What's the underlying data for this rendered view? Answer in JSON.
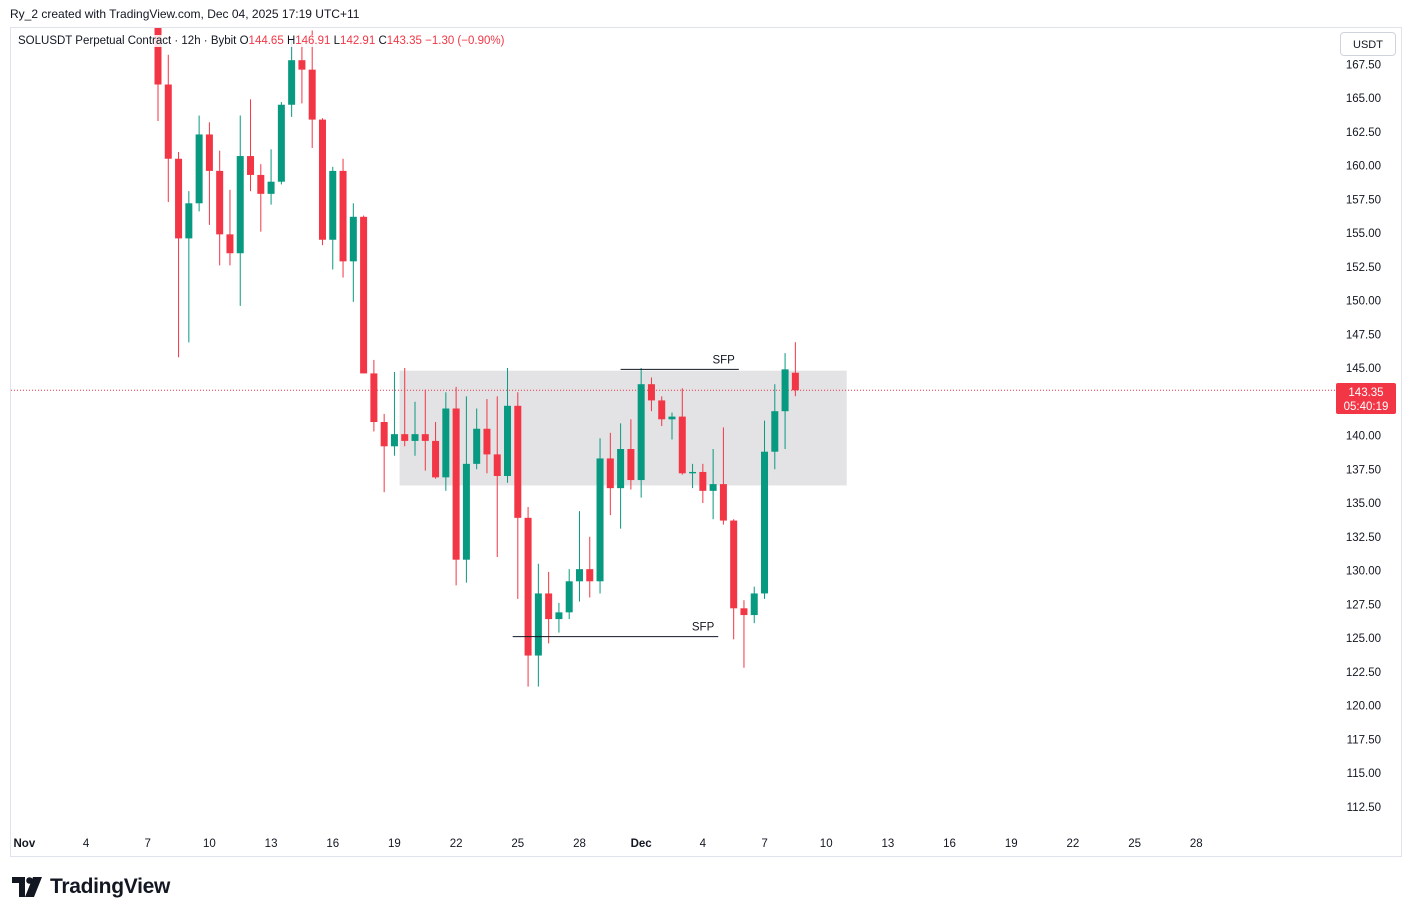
{
  "header": {
    "attribution": "Ry_2 created with TradingView.com, Dec 04, 2025 17:19 UTC+11"
  },
  "legend": {
    "symbol": "SOLUSDT Perpetual Contract · 12h · Bybit",
    "open_label": "O",
    "open": "144.65",
    "high_label": "H",
    "high": "146.91",
    "low_label": "L",
    "low": "142.91",
    "close_label": "C",
    "close": "143.35",
    "change": "−1.30 (−0.90%)"
  },
  "currency": "USDT",
  "last_price": {
    "price": "143.35",
    "countdown": "05:40:19"
  },
  "branding": {
    "name": "TradingView"
  },
  "colors": {
    "up": "#089981",
    "down": "#f23645",
    "zone": "#e1e2e4",
    "line": "#131722",
    "grid": "#e0e3eb"
  },
  "chart_data": {
    "type": "candlestick",
    "interval": "12h",
    "price_axis": {
      "ticks": [
        "167.50",
        "165.00",
        "162.50",
        "160.00",
        "157.50",
        "155.00",
        "152.50",
        "150.00",
        "147.50",
        "145.00",
        "140.00",
        "137.50",
        "135.00",
        "132.50",
        "130.00",
        "127.50",
        "125.00",
        "122.50",
        "120.00",
        "117.50",
        "115.00",
        "112.50"
      ],
      "range": [
        110.8,
        168.9
      ]
    },
    "time_axis": {
      "ticks": [
        {
          "label": "28",
          "i": -19,
          "bold": false
        },
        {
          "label": "Nov",
          "i": -13,
          "bold": true
        },
        {
          "label": "4",
          "i": -7,
          "bold": false
        },
        {
          "label": "7",
          "i": -1,
          "bold": false
        },
        {
          "label": "10",
          "i": 5,
          "bold": false
        },
        {
          "label": "13",
          "i": 11,
          "bold": false
        },
        {
          "label": "16",
          "i": 17,
          "bold": false
        },
        {
          "label": "19",
          "i": 23,
          "bold": false
        },
        {
          "label": "22",
          "i": 29,
          "bold": false
        },
        {
          "label": "25",
          "i": 35,
          "bold": false
        },
        {
          "label": "28",
          "i": 41,
          "bold": false
        },
        {
          "label": "Dec",
          "i": 47,
          "bold": true
        },
        {
          "label": "4",
          "i": 53,
          "bold": false
        },
        {
          "label": "7",
          "i": 59,
          "bold": false
        },
        {
          "label": "10",
          "i": 65,
          "bold": false
        },
        {
          "label": "13",
          "i": 71,
          "bold": false
        },
        {
          "label": "16",
          "i": 77,
          "bold": false
        },
        {
          "label": "19",
          "i": 83,
          "bold": false
        },
        {
          "label": "22",
          "i": 89,
          "bold": false
        },
        {
          "label": "25",
          "i": 95,
          "bold": false
        },
        {
          "label": "28",
          "i": 101,
          "bold": false
        }
      ]
    },
    "candles": [
      {
        "o": 170.5,
        "h": 171.5,
        "l": 163.3,
        "c": 166.0
      },
      {
        "o": 166.0,
        "h": 168.2,
        "l": 157.3,
        "c": 160.5
      },
      {
        "o": 160.5,
        "h": 161.0,
        "l": 145.8,
        "c": 154.6
      },
      {
        "o": 154.6,
        "h": 158.1,
        "l": 146.9,
        "c": 157.2
      },
      {
        "o": 157.2,
        "h": 163.7,
        "l": 156.6,
        "c": 162.3
      },
      {
        "o": 162.3,
        "h": 163.2,
        "l": 155.6,
        "c": 159.6
      },
      {
        "o": 159.6,
        "h": 161.1,
        "l": 152.6,
        "c": 154.9
      },
      {
        "o": 154.9,
        "h": 158.2,
        "l": 152.6,
        "c": 153.5
      },
      {
        "o": 153.5,
        "h": 163.7,
        "l": 149.6,
        "c": 160.7
      },
      {
        "o": 160.7,
        "h": 164.9,
        "l": 158.1,
        "c": 159.3
      },
      {
        "o": 159.3,
        "h": 160.1,
        "l": 155.1,
        "c": 157.9
      },
      {
        "o": 157.9,
        "h": 161.2,
        "l": 157.1,
        "c": 158.8
      },
      {
        "o": 158.8,
        "h": 164.7,
        "l": 158.6,
        "c": 164.5
      },
      {
        "o": 164.5,
        "h": 169.4,
        "l": 163.6,
        "c": 167.8
      },
      {
        "o": 167.8,
        "h": 169.4,
        "l": 164.6,
        "c": 167.1
      },
      {
        "o": 167.1,
        "h": 170.0,
        "l": 161.3,
        "c": 163.4
      },
      {
        "o": 163.4,
        "h": 163.5,
        "l": 154.1,
        "c": 154.5
      },
      {
        "o": 154.5,
        "h": 159.9,
        "l": 152.3,
        "c": 159.6
      },
      {
        "o": 159.6,
        "h": 160.5,
        "l": 151.7,
        "c": 152.9
      },
      {
        "o": 152.9,
        "h": 157.2,
        "l": 149.9,
        "c": 156.2
      },
      {
        "o": 156.2,
        "h": 156.3,
        "l": 144.6,
        "c": 144.6
      },
      {
        "o": 144.6,
        "h": 145.6,
        "l": 140.3,
        "c": 141.0
      },
      {
        "o": 141.0,
        "h": 141.6,
        "l": 135.8,
        "c": 139.2
      },
      {
        "o": 139.2,
        "h": 144.7,
        "l": 138.5,
        "c": 140.1
      },
      {
        "o": 140.1,
        "h": 145.0,
        "l": 139.2,
        "c": 139.6
      },
      {
        "o": 139.6,
        "h": 142.5,
        "l": 138.5,
        "c": 140.1
      },
      {
        "o": 140.1,
        "h": 143.4,
        "l": 137.4,
        "c": 139.6
      },
      {
        "o": 139.6,
        "h": 141.0,
        "l": 136.8,
        "c": 136.9
      },
      {
        "o": 136.9,
        "h": 143.2,
        "l": 135.9,
        "c": 142.0
      },
      {
        "o": 142.0,
        "h": 143.6,
        "l": 128.9,
        "c": 130.8
      },
      {
        "o": 130.8,
        "h": 142.9,
        "l": 129.1,
        "c": 137.9
      },
      {
        "o": 137.9,
        "h": 142.0,
        "l": 137.5,
        "c": 140.5
      },
      {
        "o": 140.5,
        "h": 142.7,
        "l": 137.2,
        "c": 138.6
      },
      {
        "o": 138.6,
        "h": 142.9,
        "l": 131.0,
        "c": 137.0
      },
      {
        "o": 137.0,
        "h": 145.0,
        "l": 136.5,
        "c": 142.2
      },
      {
        "o": 142.2,
        "h": 143.2,
        "l": 127.9,
        "c": 133.9
      },
      {
        "o": 133.9,
        "h": 134.7,
        "l": 121.4,
        "c": 123.7
      },
      {
        "o": 123.7,
        "h": 130.5,
        "l": 121.4,
        "c": 128.3
      },
      {
        "o": 128.3,
        "h": 129.9,
        "l": 124.6,
        "c": 126.4
      },
      {
        "o": 126.4,
        "h": 127.6,
        "l": 125.4,
        "c": 126.9
      },
      {
        "o": 126.9,
        "h": 130.1,
        "l": 126.4,
        "c": 129.2
      },
      {
        "o": 129.2,
        "h": 134.4,
        "l": 127.7,
        "c": 130.1
      },
      {
        "o": 130.1,
        "h": 132.5,
        "l": 128.0,
        "c": 129.2
      },
      {
        "o": 129.2,
        "h": 139.8,
        "l": 128.3,
        "c": 138.3
      },
      {
        "o": 138.3,
        "h": 140.2,
        "l": 134.1,
        "c": 136.1
      },
      {
        "o": 136.1,
        "h": 140.9,
        "l": 133.1,
        "c": 139.0
      },
      {
        "o": 139.0,
        "h": 141.2,
        "l": 136.0,
        "c": 136.7
      },
      {
        "o": 136.7,
        "h": 145.0,
        "l": 135.4,
        "c": 143.8
      },
      {
        "o": 143.8,
        "h": 144.3,
        "l": 141.8,
        "c": 142.6
      },
      {
        "o": 142.6,
        "h": 142.9,
        "l": 140.7,
        "c": 141.2
      },
      {
        "o": 141.2,
        "h": 141.7,
        "l": 139.7,
        "c": 141.4
      },
      {
        "o": 141.4,
        "h": 143.5,
        "l": 137.1,
        "c": 137.2
      },
      {
        "o": 137.2,
        "h": 137.9,
        "l": 136.1,
        "c": 137.3
      },
      {
        "o": 137.3,
        "h": 137.9,
        "l": 135.0,
        "c": 135.9
      },
      {
        "o": 135.9,
        "h": 139.0,
        "l": 133.8,
        "c": 136.4
      },
      {
        "o": 136.4,
        "h": 140.6,
        "l": 133.4,
        "c": 133.7
      },
      {
        "o": 133.7,
        "h": 133.8,
        "l": 124.9,
        "c": 127.2
      },
      {
        "o": 127.2,
        "h": 127.8,
        "l": 122.8,
        "c": 126.7
      },
      {
        "o": 126.7,
        "h": 128.8,
        "l": 126.1,
        "c": 128.3
      },
      {
        "o": 128.3,
        "h": 141.1,
        "l": 127.9,
        "c": 138.8
      },
      {
        "o": 138.8,
        "h": 143.8,
        "l": 137.5,
        "c": 141.8
      },
      {
        "o": 141.8,
        "h": 146.1,
        "l": 139.0,
        "c": 144.9
      },
      {
        "o": 144.65,
        "h": 146.91,
        "l": 142.91,
        "c": 143.35
      }
    ],
    "annotations": {
      "zone": {
        "price_top": 144.8,
        "price_bottom": 136.3,
        "i_start": 23.5,
        "i_end": 67.0
      },
      "lines": [
        {
          "label": "SFP",
          "price": 144.9,
          "i_start": 45,
          "i_end": 56.5
        },
        {
          "label": "SFP",
          "price": 125.1,
          "i_start": 34.5,
          "i_end": 54.5
        }
      ],
      "current_price_line": 143.35
    }
  }
}
